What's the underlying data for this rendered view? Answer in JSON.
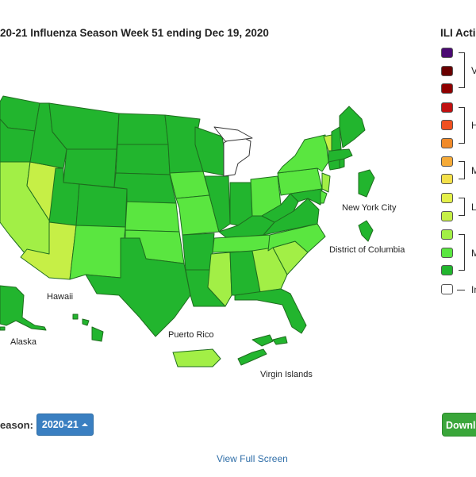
{
  "map": {
    "title": "20-21 Influenza Season Week 51 ending Dec 19, 2020"
  },
  "legend": {
    "title": "ILI Acti",
    "swatches": [
      {
        "color": "#4b0a73"
      },
      {
        "color": "#6a0000"
      },
      {
        "color": "#8f0000"
      },
      {
        "color": "#c01010"
      },
      {
        "color": "#f05020"
      },
      {
        "color": "#f08a2a"
      },
      {
        "color": "#f5aa38"
      },
      {
        "color": "#f3e04a"
      },
      {
        "color": "#e4f04a"
      },
      {
        "color": "#c6ef46"
      },
      {
        "color": "#a2ef46"
      },
      {
        "color": "#5ae640"
      },
      {
        "color": "#22b52e"
      },
      {
        "color": "#ffffff"
      }
    ],
    "groups": [
      {
        "label": "V"
      },
      {
        "label": "H"
      },
      {
        "label": "M"
      },
      {
        "label": "L"
      },
      {
        "label": "M"
      },
      {
        "label": "In"
      }
    ]
  },
  "places": {
    "new_york_city": "New York City",
    "district_of_columbia": "District of Columbia",
    "hawaii": "Hawaii",
    "alaska": "Alaska",
    "puerto_rico": "Puerto Rico",
    "virgin_islands": "Virgin Islands"
  },
  "colors": {
    "minimal_dark": "#22b52e",
    "minimal_mid": "#5ae640",
    "low_light": "#a2ef46",
    "low_lighter": "#c6ef46",
    "insufficient": "#ffffff",
    "border": "#1f6d1f"
  },
  "controls": {
    "season_label": "eason:",
    "season_value": "2020-21",
    "download_label": "Downlo",
    "view_full_screen": "View Full Screen"
  }
}
